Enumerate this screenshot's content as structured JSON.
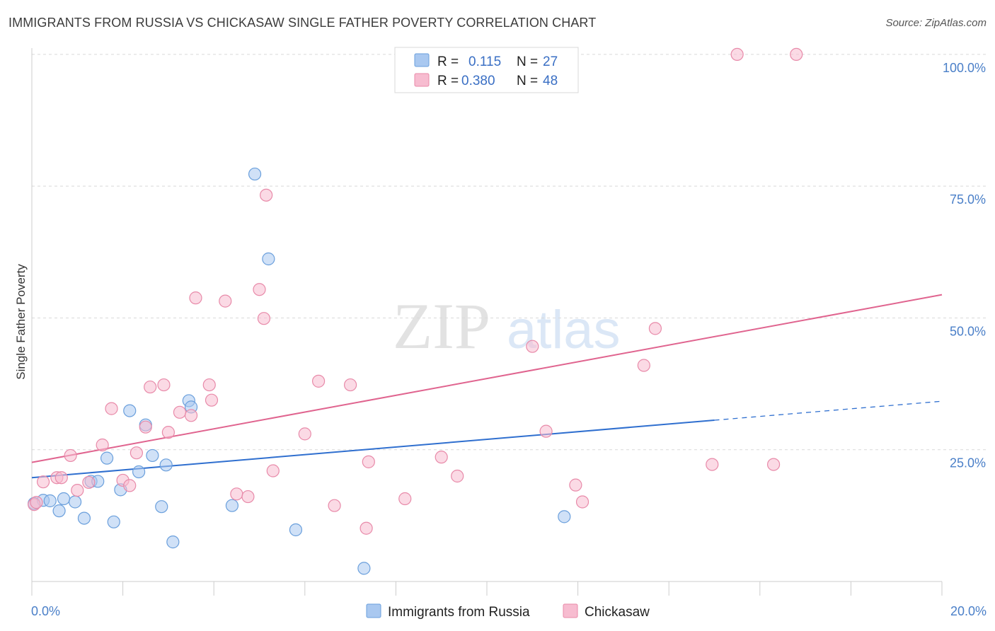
{
  "header": {
    "title": "IMMIGRANTS FROM RUSSIA VS CHICKASAW SINGLE FATHER POVERTY CORRELATION CHART",
    "source": "Source: ZipAtlas.com"
  },
  "watermark": {
    "zip": "ZIP",
    "atlas": "atlas"
  },
  "legend": {
    "rows": [
      {
        "r_label": "R =",
        "r_value": "0.115",
        "n_label": "N =",
        "n_value": "27"
      },
      {
        "r_label": "R =",
        "r_value": "0.380",
        "n_label": "N =",
        "n_value": "48"
      }
    ]
  },
  "colors": {
    "russia_fill": "#a9c8f0",
    "russia_stroke": "#6a9fdc",
    "russia_line": "#2f6fcf",
    "chickasaw_fill": "#f7bcd0",
    "chickasaw_stroke": "#e88aa9",
    "chickasaw_line": "#e0648f",
    "tick_text": "#4a7fc8",
    "grid": "#d9d9d9"
  },
  "chart_data": {
    "type": "scatter",
    "xlabel": "",
    "ylabel": "Single Father Poverty",
    "xlim": [
      0,
      20
    ],
    "ylim": [
      0,
      102
    ],
    "x_tick_labels": [
      "0.0%",
      "20.0%"
    ],
    "y_ticks": [
      25,
      50,
      75,
      100
    ],
    "y_tick_labels": [
      "25.0%",
      "50.0%",
      "75.0%",
      "100.0%"
    ],
    "grid": true,
    "legend_placement": "top-center",
    "series": [
      {
        "name": "Immigrants from Russia",
        "r": 0.115,
        "n": 27,
        "points": [
          [
            0.05,
            14.8
          ],
          [
            0.25,
            15.4
          ],
          [
            0.4,
            15.3
          ],
          [
            0.6,
            13.4
          ],
          [
            0.7,
            15.7
          ],
          [
            0.95,
            15.1
          ],
          [
            1.15,
            12.0
          ],
          [
            1.3,
            19.0
          ],
          [
            1.45,
            19.0
          ],
          [
            1.65,
            23.4
          ],
          [
            1.8,
            11.3
          ],
          [
            1.95,
            17.4
          ],
          [
            2.15,
            32.4
          ],
          [
            2.35,
            20.8
          ],
          [
            2.5,
            29.7
          ],
          [
            2.65,
            23.9
          ],
          [
            2.85,
            14.2
          ],
          [
            2.95,
            22.1
          ],
          [
            3.1,
            7.5
          ],
          [
            3.45,
            34.3
          ],
          [
            3.5,
            33.1
          ],
          [
            4.4,
            14.4
          ],
          [
            4.9,
            77.3
          ],
          [
            5.2,
            61.2
          ],
          [
            5.8,
            9.8
          ],
          [
            7.3,
            2.5
          ],
          [
            11.7,
            12.3
          ]
        ],
        "trend": {
          "x0": 0,
          "y0": 19.7,
          "x1": 15.0,
          "y1": 30.6,
          "dash_x1": 20.0,
          "dash_y1": 34.2
        }
      },
      {
        "name": "Chickasaw",
        "r": 0.38,
        "n": 48,
        "points": [
          [
            0.05,
            14.6
          ],
          [
            0.25,
            18.9
          ],
          [
            0.55,
            19.7
          ],
          [
            0.65,
            19.7
          ],
          [
            0.85,
            23.9
          ],
          [
            1.0,
            17.3
          ],
          [
            1.25,
            18.8
          ],
          [
            1.55,
            25.9
          ],
          [
            1.75,
            32.8
          ],
          [
            2.0,
            19.2
          ],
          [
            2.15,
            18.2
          ],
          [
            2.3,
            24.4
          ],
          [
            2.5,
            29.3
          ],
          [
            2.6,
            36.9
          ],
          [
            2.9,
            37.3
          ],
          [
            3.0,
            28.3
          ],
          [
            3.25,
            32.1
          ],
          [
            3.5,
            31.5
          ],
          [
            3.6,
            53.8
          ],
          [
            3.9,
            37.3
          ],
          [
            3.95,
            34.4
          ],
          [
            4.25,
            53.2
          ],
          [
            4.5,
            16.6
          ],
          [
            4.75,
            16.1
          ],
          [
            5.0,
            55.4
          ],
          [
            5.1,
            49.9
          ],
          [
            5.15,
            73.3
          ],
          [
            5.3,
            21.0
          ],
          [
            6.0,
            28.0
          ],
          [
            6.3,
            38.0
          ],
          [
            6.65,
            14.4
          ],
          [
            7.0,
            37.3
          ],
          [
            7.35,
            10.1
          ],
          [
            7.4,
            22.7
          ],
          [
            8.2,
            15.7
          ],
          [
            9.0,
            23.6
          ],
          [
            9.35,
            20.0
          ],
          [
            11.0,
            44.6
          ],
          [
            11.3,
            28.5
          ],
          [
            11.95,
            18.3
          ],
          [
            12.1,
            15.1
          ],
          [
            13.45,
            41.0
          ],
          [
            13.7,
            48.0
          ],
          [
            14.95,
            22.2
          ],
          [
            16.3,
            22.2
          ],
          [
            15.5,
            100.0
          ],
          [
            16.8,
            100.0
          ],
          [
            0.1,
            15.0
          ]
        ],
        "trend": {
          "x0": 0,
          "y0": 22.6,
          "x1": 20.0,
          "y1": 54.4
        }
      }
    ]
  }
}
